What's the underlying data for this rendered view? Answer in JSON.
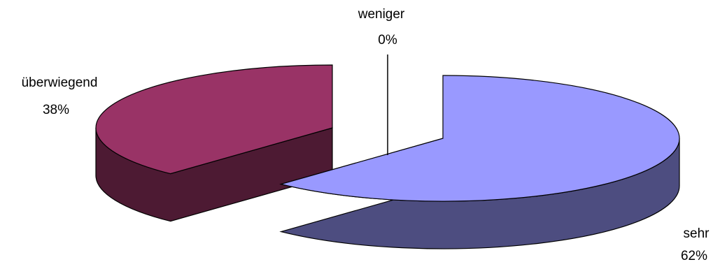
{
  "chart_data": {
    "type": "pie",
    "style": "3d-exploded",
    "categories": [
      "sehr",
      "überwiegend",
      "weniger"
    ],
    "values": [
      62,
      38,
      0
    ],
    "labels": [
      {
        "name": "sehr",
        "percent": "62%"
      },
      {
        "name": "überwiegend",
        "percent": "38%"
      },
      {
        "name": "weniger",
        "percent": "0%"
      }
    ],
    "colors": {
      "sehr_top": "#9999ff",
      "sehr_side": "#4d4d80",
      "ueberwiegend_top": "#993366",
      "ueberwiegend_side": "#4d1a33",
      "outline": "#000000"
    },
    "legend": "none",
    "grid": false
  }
}
